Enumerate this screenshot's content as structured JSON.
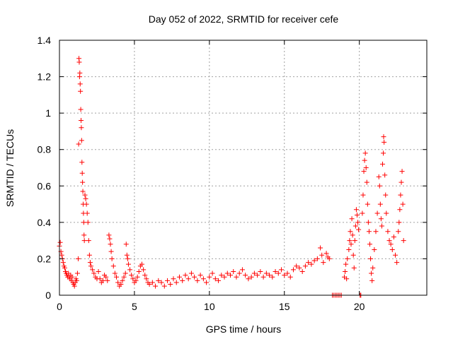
{
  "chart_data": {
    "type": "scatter",
    "title": "Day 052 of 2022, SRMTID for receiver cefe",
    "xlabel": "GPS time / hours",
    "ylabel": "SRMTID / TECUs",
    "xlim": [
      0,
      24.5
    ],
    "ylim": [
      0,
      1.4
    ],
    "xticks": [
      0,
      5,
      10,
      15,
      20
    ],
    "xtick_labels": [
      "0",
      "5",
      "10",
      "15",
      "20"
    ],
    "yticks": [
      0,
      0.2,
      0.4,
      0.6,
      0.8,
      1,
      1.2,
      1.4
    ],
    "ytick_labels": [
      "0",
      "0.2",
      "0.4",
      "0.6",
      "0.8",
      "1",
      "1.2",
      "1.4"
    ],
    "grid": true,
    "marker": "+",
    "series": [
      {
        "name": "SRMTID",
        "color": "#ff0000",
        "points": [
          [
            0.0,
            0.27
          ],
          [
            0.05,
            0.29
          ],
          [
            0.1,
            0.24
          ],
          [
            0.15,
            0.22
          ],
          [
            0.2,
            0.2
          ],
          [
            0.25,
            0.18
          ],
          [
            0.3,
            0.16
          ],
          [
            0.35,
            0.15
          ],
          [
            0.4,
            0.13
          ],
          [
            0.45,
            0.12
          ],
          [
            0.5,
            0.11
          ],
          [
            0.55,
            0.1
          ],
          [
            0.6,
            0.12
          ],
          [
            0.65,
            0.1
          ],
          [
            0.7,
            0.09
          ],
          [
            0.75,
            0.11
          ],
          [
            0.8,
            0.08
          ],
          [
            0.85,
            0.1
          ],
          [
            0.9,
            0.07
          ],
          [
            0.95,
            0.06
          ],
          [
            1.0,
            0.05
          ],
          [
            1.05,
            0.07
          ],
          [
            1.1,
            0.09
          ],
          [
            1.15,
            0.08
          ],
          [
            1.2,
            0.12
          ],
          [
            1.25,
            0.2
          ],
          [
            1.28,
            0.83
          ],
          [
            1.3,
            1.3
          ],
          [
            1.32,
            1.28
          ],
          [
            1.34,
            1.2
          ],
          [
            1.36,
            1.22
          ],
          [
            1.38,
            1.16
          ],
          [
            1.4,
            1.12
          ],
          [
            1.42,
            1.02
          ],
          [
            1.44,
            0.96
          ],
          [
            1.46,
            0.92
          ],
          [
            1.48,
            0.85
          ],
          [
            1.5,
            0.73
          ],
          [
            1.52,
            0.67
          ],
          [
            1.54,
            0.62
          ],
          [
            1.56,
            0.57
          ],
          [
            1.58,
            0.5
          ],
          [
            1.6,
            0.45
          ],
          [
            1.62,
            0.4
          ],
          [
            1.64,
            0.33
          ],
          [
            1.66,
            0.3
          ],
          [
            1.7,
            0.55
          ],
          [
            1.75,
            0.53
          ],
          [
            1.8,
            0.5
          ],
          [
            1.85,
            0.45
          ],
          [
            1.9,
            0.4
          ],
          [
            1.95,
            0.3
          ],
          [
            2.0,
            0.22
          ],
          [
            2.05,
            0.18
          ],
          [
            2.1,
            0.16
          ],
          [
            2.2,
            0.14
          ],
          [
            2.3,
            0.12
          ],
          [
            2.4,
            0.1
          ],
          [
            2.5,
            0.09
          ],
          [
            2.6,
            0.13
          ],
          [
            2.7,
            0.09
          ],
          [
            2.8,
            0.07
          ],
          [
            2.9,
            0.08
          ],
          [
            3.0,
            0.11
          ],
          [
            3.1,
            0.1
          ],
          [
            3.2,
            0.08
          ],
          [
            3.3,
            0.33
          ],
          [
            3.35,
            0.31
          ],
          [
            3.4,
            0.28
          ],
          [
            3.45,
            0.24
          ],
          [
            3.5,
            0.2
          ],
          [
            3.6,
            0.16
          ],
          [
            3.7,
            0.12
          ],
          [
            3.8,
            0.1
          ],
          [
            3.9,
            0.07
          ],
          [
            4.0,
            0.05
          ],
          [
            4.1,
            0.06
          ],
          [
            4.2,
            0.08
          ],
          [
            4.3,
            0.1
          ],
          [
            4.4,
            0.12
          ],
          [
            4.45,
            0.28
          ],
          [
            4.5,
            0.22
          ],
          [
            4.55,
            0.2
          ],
          [
            4.6,
            0.17
          ],
          [
            4.7,
            0.14
          ],
          [
            4.8,
            0.11
          ],
          [
            4.9,
            0.09
          ],
          [
            5.0,
            0.07
          ],
          [
            5.1,
            0.08
          ],
          [
            5.2,
            0.1
          ],
          [
            5.3,
            0.13
          ],
          [
            5.4,
            0.16
          ],
          [
            5.5,
            0.17
          ],
          [
            5.6,
            0.14
          ],
          [
            5.7,
            0.11
          ],
          [
            5.8,
            0.09
          ],
          [
            5.9,
            0.07
          ],
          [
            6.0,
            0.06
          ],
          [
            6.2,
            0.07
          ],
          [
            6.4,
            0.05
          ],
          [
            6.6,
            0.08
          ],
          [
            6.8,
            0.07
          ],
          [
            7.0,
            0.05
          ],
          [
            7.2,
            0.08
          ],
          [
            7.4,
            0.06
          ],
          [
            7.6,
            0.09
          ],
          [
            7.8,
            0.07
          ],
          [
            8.0,
            0.1
          ],
          [
            8.2,
            0.08
          ],
          [
            8.4,
            0.11
          ],
          [
            8.6,
            0.09
          ],
          [
            8.8,
            0.12
          ],
          [
            9.0,
            0.1
          ],
          [
            9.2,
            0.08
          ],
          [
            9.4,
            0.11
          ],
          [
            9.6,
            0.09
          ],
          [
            9.8,
            0.07
          ],
          [
            10.0,
            0.1
          ],
          [
            10.2,
            0.12
          ],
          [
            10.4,
            0.09
          ],
          [
            10.6,
            0.08
          ],
          [
            10.8,
            0.11
          ],
          [
            11.0,
            0.1
          ],
          [
            11.2,
            0.12
          ],
          [
            11.4,
            0.11
          ],
          [
            11.6,
            0.13
          ],
          [
            11.8,
            0.1
          ],
          [
            12.0,
            0.12
          ],
          [
            12.2,
            0.14
          ],
          [
            12.4,
            0.11
          ],
          [
            12.6,
            0.09
          ],
          [
            12.8,
            0.1
          ],
          [
            13.0,
            0.12
          ],
          [
            13.2,
            0.11
          ],
          [
            13.4,
            0.13
          ],
          [
            13.6,
            0.1
          ],
          [
            13.8,
            0.12
          ],
          [
            14.0,
            0.11
          ],
          [
            14.2,
            0.1
          ],
          [
            14.4,
            0.13
          ],
          [
            14.6,
            0.12
          ],
          [
            14.8,
            0.14
          ],
          [
            15.0,
            0.11
          ],
          [
            15.2,
            0.12
          ],
          [
            15.4,
            0.1
          ],
          [
            15.6,
            0.14
          ],
          [
            15.8,
            0.16
          ],
          [
            16.0,
            0.15
          ],
          [
            16.2,
            0.13
          ],
          [
            16.4,
            0.16
          ],
          [
            16.6,
            0.18
          ],
          [
            16.8,
            0.17
          ],
          [
            17.0,
            0.19
          ],
          [
            17.2,
            0.2
          ],
          [
            17.4,
            0.26
          ],
          [
            17.5,
            0.22
          ],
          [
            17.6,
            0.18
          ],
          [
            17.8,
            0.23
          ],
          [
            17.9,
            0.21
          ],
          [
            18.0,
            0.2
          ],
          [
            18.2,
            0.0
          ],
          [
            18.3,
            0.0
          ],
          [
            18.4,
            0.0
          ],
          [
            18.5,
            0.0
          ],
          [
            18.6,
            0.0
          ],
          [
            18.7,
            0.0
          ],
          [
            18.8,
            0.0
          ],
          [
            19.0,
            0.1
          ],
          [
            19.05,
            0.13
          ],
          [
            19.1,
            0.17
          ],
          [
            19.15,
            0.09
          ],
          [
            19.2,
            0.2
          ],
          [
            19.3,
            0.25
          ],
          [
            19.35,
            0.3
          ],
          [
            19.4,
            0.35
          ],
          [
            19.45,
            0.28
          ],
          [
            19.5,
            0.42
          ],
          [
            19.55,
            0.33
          ],
          [
            19.6,
            0.22
          ],
          [
            19.65,
            0.15
          ],
          [
            19.7,
            0.3
          ],
          [
            19.75,
            0.38
          ],
          [
            19.8,
            0.47
          ],
          [
            19.85,
            0.44
          ],
          [
            19.9,
            0.4
          ],
          [
            19.95,
            0.36
          ],
          [
            20.05,
            0.0
          ],
          [
            20.1,
            0.0
          ],
          [
            20.2,
            0.45
          ],
          [
            20.25,
            0.55
          ],
          [
            20.3,
            0.68
          ],
          [
            20.35,
            0.74
          ],
          [
            20.4,
            0.78
          ],
          [
            20.45,
            0.7
          ],
          [
            20.5,
            0.62
          ],
          [
            20.55,
            0.5
          ],
          [
            20.6,
            0.4
          ],
          [
            20.65,
            0.35
          ],
          [
            20.7,
            0.28
          ],
          [
            20.75,
            0.2
          ],
          [
            20.8,
            0.12
          ],
          [
            20.85,
            0.08
          ],
          [
            20.9,
            0.15
          ],
          [
            21.0,
            0.25
          ],
          [
            21.1,
            0.35
          ],
          [
            21.2,
            0.45
          ],
          [
            21.3,
            0.65
          ],
          [
            21.35,
            0.6
          ],
          [
            21.4,
            0.5
          ],
          [
            21.45,
            0.42
          ],
          [
            21.5,
            0.38
          ],
          [
            21.55,
            0.72
          ],
          [
            21.6,
            0.78
          ],
          [
            21.62,
            0.87
          ],
          [
            21.65,
            0.84
          ],
          [
            21.7,
            0.66
          ],
          [
            21.75,
            0.55
          ],
          [
            21.8,
            0.45
          ],
          [
            21.9,
            0.35
          ],
          [
            22.0,
            0.3
          ],
          [
            22.1,
            0.28
          ],
          [
            22.2,
            0.25
          ],
          [
            22.3,
            0.32
          ],
          [
            22.4,
            0.22
          ],
          [
            22.5,
            0.18
          ],
          [
            22.6,
            0.35
          ],
          [
            22.65,
            0.4
          ],
          [
            22.7,
            0.47
          ],
          [
            22.75,
            0.55
          ],
          [
            22.8,
            0.62
          ],
          [
            22.85,
            0.68
          ],
          [
            22.9,
            0.5
          ],
          [
            22.95,
            0.3
          ]
        ]
      }
    ]
  }
}
